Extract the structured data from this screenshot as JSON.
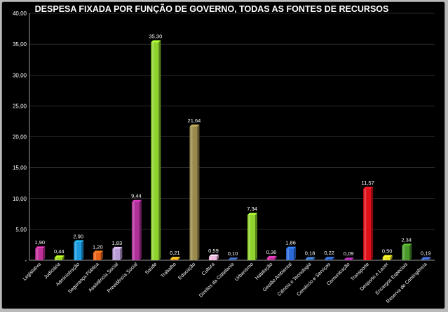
{
  "chart_data": {
    "type": "bar",
    "title": "DESPESA FIXADA POR FUNÇÃO DE GOVERNO, TODAS AS FONTES DE RECURSOS",
    "xlabel": "",
    "ylabel": "",
    "ylim": [
      0,
      40
    ],
    "yticks": [
      "-",
      "5,00",
      "10,00",
      "15,00",
      "20,00",
      "25,00",
      "30,00",
      "35,00",
      "40,00"
    ],
    "grid": true,
    "legend": "none",
    "categories": [
      "Legislativa",
      "Judiciária",
      "Administração",
      "Segurança Pública",
      "Assistência Social",
      "Previdência Social",
      "Saúde",
      "Trabalho",
      "Educação",
      "Cultura",
      "Direitos da Cidadania",
      "Urbanismo",
      "Habitação",
      "Gestão Ambiental",
      "Ciência e Tecnologia",
      "Comércio e Serviços",
      "Comunicação",
      "Transporte",
      "Desporto e Lazer",
      "Encargos Especiais",
      "Reserva de Contingência"
    ],
    "values": [
      1.9,
      0.44,
      2.9,
      1.2,
      1.83,
      9.44,
      35.3,
      0.21,
      21.64,
      0.59,
      0.1,
      7.34,
      0.36,
      1.86,
      0.18,
      0.22,
      0.09,
      11.57,
      0.5,
      2.34,
      0.19
    ],
    "value_labels": [
      "1,90",
      "0,44",
      "2,90",
      "1,20",
      "1,83",
      "9,44",
      "35,30",
      "0,21",
      "21,64",
      "0,59",
      "0,10",
      "7,34",
      "0,36",
      "1,86",
      "0,18",
      "0,22",
      "0,09",
      "11,57",
      "0,50",
      "2,34",
      "0,19"
    ],
    "colors": [
      "#c0309a",
      "#9bd21c",
      "#1c9be0",
      "#e8641a",
      "#b89cd6",
      "#b0309a",
      "#8fd22c",
      "#e8a020",
      "#9a8a4c",
      "#f2b8e0",
      "#3a5aa0",
      "#8fd22c",
      "#c0309a",
      "#2a6ad8",
      "#3a6ab0",
      "#2a5ab0",
      "#9a2a9a",
      "#e0101a",
      "#e8e020",
      "#4a9a2a",
      "#3a5ab0"
    ]
  }
}
